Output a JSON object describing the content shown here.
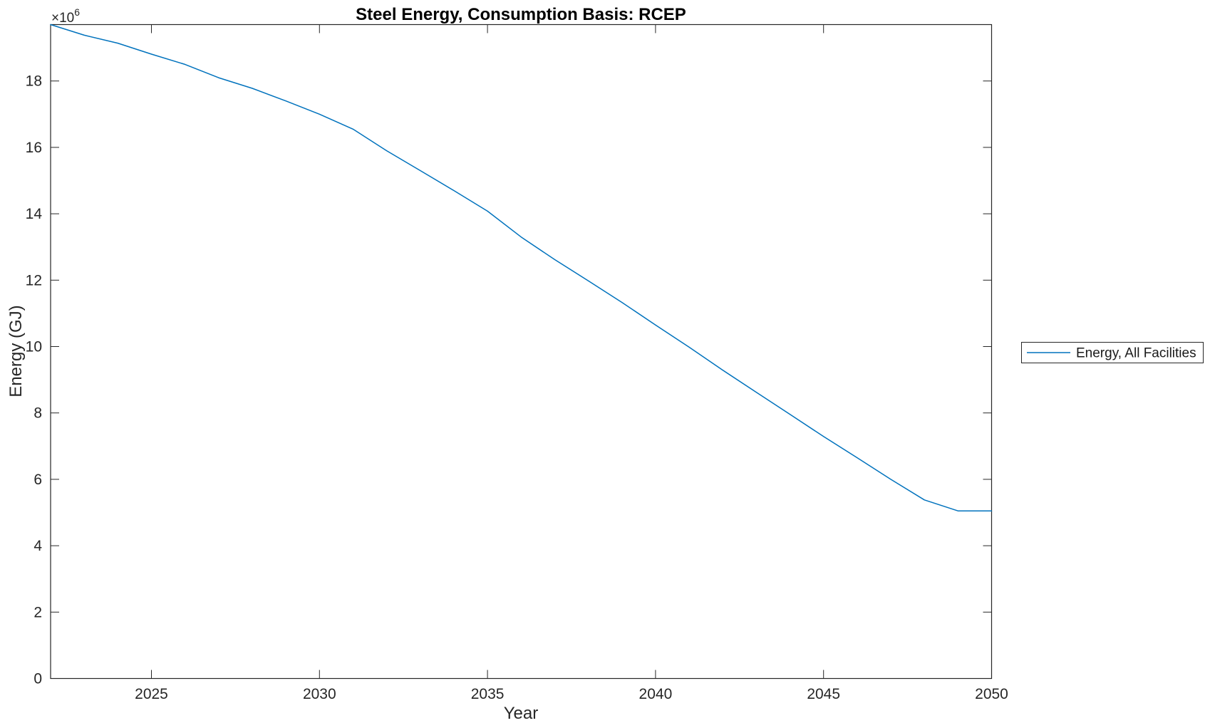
{
  "figure": {
    "background_color": "#ffffff",
    "axis_color": "#262626",
    "text_color": "#262626",
    "title_color": "#000000"
  },
  "chart_data": {
    "type": "line",
    "title": "Steel Energy, Consumption Basis: RCEP",
    "xlabel": "Year",
    "ylabel": "Energy (GJ)",
    "y_axis_exponent": {
      "prefix": "×10",
      "exponent": "6"
    },
    "grid": false,
    "xlim": [
      2022,
      2050
    ],
    "ylim": [
      0,
      19700000
    ],
    "x_ticks": [
      2025,
      2030,
      2035,
      2040,
      2045,
      2050
    ],
    "x_tick_labels": [
      "2025",
      "2030",
      "2035",
      "2040",
      "2045",
      "2050"
    ],
    "y_ticks": [
      0,
      2000000,
      4000000,
      6000000,
      8000000,
      10000000,
      12000000,
      14000000,
      16000000,
      18000000
    ],
    "y_tick_labels": [
      "0",
      "2",
      "4",
      "6",
      "8",
      "10",
      "12",
      "14",
      "16",
      "18"
    ],
    "x": [
      2022,
      2023,
      2024,
      2025,
      2026,
      2027,
      2028,
      2029,
      2030,
      2031,
      2032,
      2033,
      2034,
      2035,
      2036,
      2037,
      2038,
      2039,
      2040,
      2041,
      2042,
      2043,
      2044,
      2045,
      2046,
      2047,
      2048,
      2049,
      2050
    ],
    "series": [
      {
        "name": "Energy, All Facilities",
        "color": "#0072BD",
        "values": [
          19700000,
          19380000,
          19140000,
          18810000,
          18500000,
          18100000,
          17780000,
          17400000,
          17000000,
          16550000,
          15900000,
          15300000,
          14700000,
          14080000,
          13300000,
          12620000,
          11980000,
          11330000,
          10650000,
          9980000,
          9290000,
          8620000,
          7960000,
          7290000,
          6650000,
          6000000,
          5380000,
          5050000,
          5050000
        ]
      }
    ],
    "legend": {
      "position": "outside-right",
      "entries": [
        {
          "label": "Energy, All Facilities",
          "color": "#0072BD"
        }
      ]
    }
  }
}
